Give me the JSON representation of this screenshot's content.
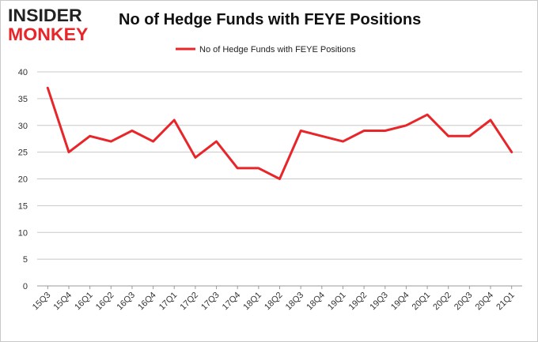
{
  "logo": {
    "line1": "INSIDER",
    "line2": "MONKEY"
  },
  "colors": {
    "series": "#e8262a",
    "grid": "#c8c8c8",
    "axis": "#999999"
  },
  "chart_data": {
    "type": "line",
    "title": "No of Hedge Funds with FEYE Positions",
    "xlabel": "",
    "ylabel": "",
    "ylim": [
      0,
      40
    ],
    "yticks": [
      0,
      5,
      10,
      15,
      20,
      25,
      30,
      35,
      40
    ],
    "grid": true,
    "legend_position": "top-center",
    "categories": [
      "15Q3",
      "15Q4",
      "16Q1",
      "16Q2",
      "16Q3",
      "16Q4",
      "17Q1",
      "17Q2",
      "17Q3",
      "17Q4",
      "18Q1",
      "18Q2",
      "18Q3",
      "18Q4",
      "19Q1",
      "19Q2",
      "19Q3",
      "19Q4",
      "20Q1",
      "20Q2",
      "20Q3",
      "20Q4",
      "21Q1"
    ],
    "series": [
      {
        "name": "No of Hedge Funds with FEYE Positions",
        "values": [
          37,
          25,
          28,
          27,
          29,
          27,
          31,
          24,
          27,
          22,
          22,
          20,
          29,
          28,
          27,
          29,
          29,
          30,
          32,
          28,
          28,
          31,
          25
        ]
      }
    ]
  }
}
